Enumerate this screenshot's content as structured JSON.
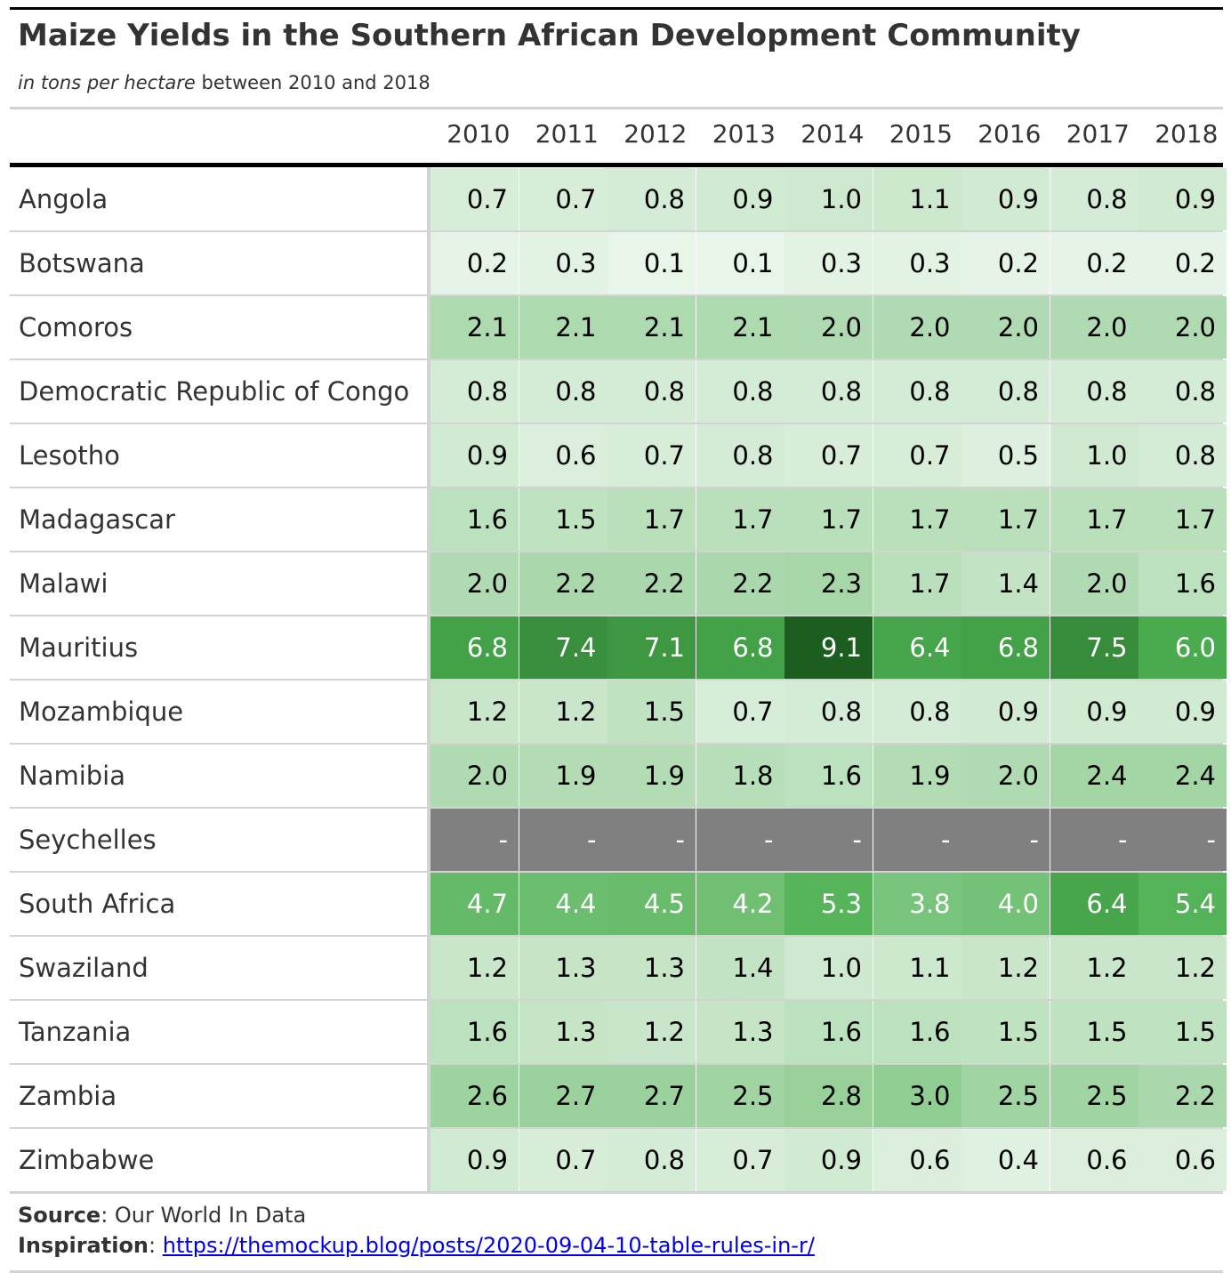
{
  "chart_data": {
    "type": "table",
    "title": "Maize Yields in the Southern African Development Community",
    "subtitle_italic": "in tons per hectare",
    "subtitle_rest": " between 2010 and 2018",
    "columns": [
      "2010",
      "2011",
      "2012",
      "2013",
      "2014",
      "2015",
      "2016",
      "2017",
      "2018"
    ],
    "rows": [
      {
        "country": "Angola",
        "values": [
          0.7,
          0.7,
          0.8,
          0.9,
          1.0,
          1.1,
          0.9,
          0.8,
          0.9
        ]
      },
      {
        "country": "Botswana",
        "values": [
          0.2,
          0.3,
          0.1,
          0.1,
          0.3,
          0.3,
          0.2,
          0.2,
          0.2
        ]
      },
      {
        "country": "Comoros",
        "values": [
          2.1,
          2.1,
          2.1,
          2.1,
          2.0,
          2.0,
          2.0,
          2.0,
          2.0
        ]
      },
      {
        "country": "Democratic Republic of Congo",
        "values": [
          0.8,
          0.8,
          0.8,
          0.8,
          0.8,
          0.8,
          0.8,
          0.8,
          0.8
        ]
      },
      {
        "country": "Lesotho",
        "values": [
          0.9,
          0.6,
          0.7,
          0.8,
          0.7,
          0.7,
          0.5,
          1.0,
          0.8
        ]
      },
      {
        "country": "Madagascar",
        "values": [
          1.6,
          1.5,
          1.7,
          1.7,
          1.7,
          1.7,
          1.7,
          1.7,
          1.7
        ]
      },
      {
        "country": "Malawi",
        "values": [
          2.0,
          2.2,
          2.2,
          2.2,
          2.3,
          1.7,
          1.4,
          2.0,
          1.6
        ]
      },
      {
        "country": "Mauritius",
        "values": [
          6.8,
          7.4,
          7.1,
          6.8,
          9.1,
          6.4,
          6.8,
          7.5,
          6.0
        ]
      },
      {
        "country": "Mozambique",
        "values": [
          1.2,
          1.2,
          1.5,
          0.7,
          0.8,
          0.8,
          0.9,
          0.9,
          0.9
        ]
      },
      {
        "country": "Namibia",
        "values": [
          2.0,
          1.9,
          1.9,
          1.8,
          1.6,
          1.9,
          2.0,
          2.4,
          2.4
        ]
      },
      {
        "country": "Seychelles",
        "values": [
          null,
          null,
          null,
          null,
          null,
          null,
          null,
          null,
          null
        ]
      },
      {
        "country": "South Africa",
        "values": [
          4.7,
          4.4,
          4.5,
          4.2,
          5.3,
          3.8,
          4.0,
          6.4,
          5.4
        ]
      },
      {
        "country": "Swaziland",
        "values": [
          1.2,
          1.3,
          1.3,
          1.4,
          1.0,
          1.1,
          1.2,
          1.2,
          1.2
        ]
      },
      {
        "country": "Tanzania",
        "values": [
          1.6,
          1.3,
          1.2,
          1.3,
          1.6,
          1.6,
          1.5,
          1.5,
          1.5
        ]
      },
      {
        "country": "Zambia",
        "values": [
          2.6,
          2.7,
          2.7,
          2.5,
          2.8,
          3.0,
          2.5,
          2.5,
          2.2
        ]
      },
      {
        "country": "Zimbabwe",
        "values": [
          0.9,
          0.7,
          0.8,
          0.7,
          0.9,
          0.6,
          0.4,
          0.6,
          0.6
        ]
      }
    ],
    "missing_text": "-",
    "color_scale": {
      "type": "sequential",
      "domain": [
        0.1,
        9.1
      ],
      "colors": [
        "#e8f5e9",
        "#c8e6c9",
        "#a5d6a7",
        "#81c784",
        "#66bb6a",
        "#4caf50",
        "#43a047",
        "#2e7d32",
        "#1b5e20"
      ],
      "missing_color": "#808080"
    }
  },
  "footer": {
    "source_label": "Source",
    "source_text": ": Our World In Data",
    "inspiration_label": "Inspiration",
    "inspiration_sep": ": ",
    "inspiration_link": "https://themockup.blog/posts/2020-09-04-10-table-rules-in-r/"
  }
}
